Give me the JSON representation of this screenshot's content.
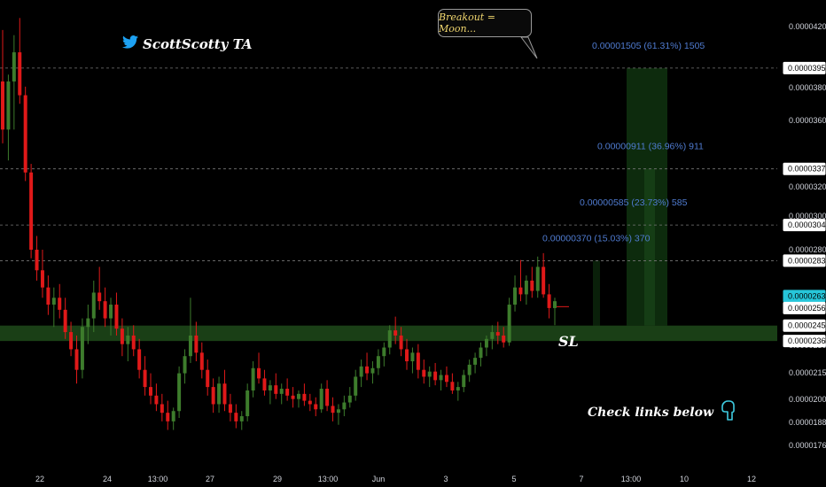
{
  "header": {
    "brand": "ScottScotty TA",
    "brand_icon": "twitter-bird-icon",
    "brand_icon_color": "#1da1f2"
  },
  "annotations": {
    "bubble_text": "Breakout = Moon...",
    "sl_text": "SL",
    "check_text": "Check links below",
    "check_icon": "pointing-down-hand-icon",
    "check_icon_color": "#3ecbe0"
  },
  "colors": {
    "up": "#3d7c2c",
    "down": "#e01919",
    "zone": "#1f4a1a",
    "target_zone": "#123a12",
    "current_price_bg": "#26c6da",
    "target_text": "#4f7bd0",
    "bubble_text": "#f0d66e"
  },
  "chart_data": {
    "type": "candlestick",
    "price_axis_ticks": [
      "0.00004200",
      "0.00003800",
      "0.00003600",
      "0.00003200",
      "0.00003000",
      "0.00002800",
      "0.00002300",
      "0.00002150",
      "0.00002000",
      "0.00001880",
      "0.00001760"
    ],
    "price_tags": [
      {
        "value": "0.00003958",
        "highlight": false
      },
      {
        "value": "0.00003371",
        "highlight": false
      },
      {
        "value": "0.00003044",
        "highlight": false
      },
      {
        "value": "0.00002836",
        "highlight": false
      },
      {
        "value": "0.00002630",
        "highlight": true
      },
      {
        "value": "0.00002560",
        "highlight": false
      },
      {
        "value": "0.00002458",
        "highlight": false
      },
      {
        "value": "0.00002368",
        "highlight": false
      }
    ],
    "date_ticks": [
      "22",
      "24",
      "13:00",
      "27",
      "29",
      "13:00",
      "Jun",
      "3",
      "5",
      "7",
      "13:00",
      "10",
      "12"
    ],
    "targets": [
      {
        "price": 3.958e-05,
        "text": "0.00001505 (61.31%) 1505"
      },
      {
        "price": 3.371e-05,
        "text": "0.00000911 (36.96%) 911"
      },
      {
        "price": 3.044e-05,
        "text": "0.00000585 (23.73%) 585"
      },
      {
        "price": 2.836e-05,
        "text": "0.00000370 (15.03%) 370"
      }
    ],
    "support_zone": {
      "high": 2.458e-05,
      "low": 2.368e-05
    },
    "current_price": 2.63e-05,
    "candles": [
      [
        3.88e-05,
        4.18e-05,
        3.52e-05,
        3.6e-05
      ],
      [
        3.6e-05,
        3.92e-05,
        3.42e-05,
        3.88e-05
      ],
      [
        3.88e-05,
        4.15e-05,
        3.6e-05,
        4.05e-05
      ],
      [
        4.05e-05,
        4.25e-05,
        3.75e-05,
        3.8e-05
      ],
      [
        3.8e-05,
        3.85e-05,
        3.3e-05,
        3.35e-05
      ],
      [
        3.35e-05,
        3.4e-05,
        2.85e-05,
        2.9e-05
      ],
      [
        2.9e-05,
        2.98e-05,
        2.72e-05,
        2.78e-05
      ],
      [
        2.78e-05,
        2.9e-05,
        2.62e-05,
        2.68e-05
      ],
      [
        2.68e-05,
        2.75e-05,
        2.52e-05,
        2.58e-05
      ],
      [
        2.58e-05,
        2.68e-05,
        2.45e-05,
        2.62e-05
      ],
      [
        2.62e-05,
        2.7e-05,
        2.5e-05,
        2.55e-05
      ],
      [
        2.55e-05,
        2.62e-05,
        2.38e-05,
        2.42e-05
      ],
      [
        2.42e-05,
        2.48e-05,
        2.28e-05,
        2.32e-05
      ],
      [
        2.32e-05,
        2.4e-05,
        2.12e-05,
        2.2e-05
      ],
      [
        2.2e-05,
        2.5e-05,
        2.15e-05,
        2.45e-05
      ],
      [
        2.45e-05,
        2.58e-05,
        2.35e-05,
        2.5e-05
      ],
      [
        2.5e-05,
        2.72e-05,
        2.42e-05,
        2.65e-05
      ],
      [
        2.65e-05,
        2.8e-05,
        2.55e-05,
        2.6e-05
      ],
      [
        2.6e-05,
        2.68e-05,
        2.45e-05,
        2.5e-05
      ],
      [
        2.5e-05,
        2.62e-05,
        2.4e-05,
        2.58e-05
      ],
      [
        2.58e-05,
        2.65e-05,
        2.4e-05,
        2.44e-05
      ],
      [
        2.44e-05,
        2.5e-05,
        2.28e-05,
        2.35e-05
      ],
      [
        2.35e-05,
        2.45e-05,
        2.25e-05,
        2.4e-05
      ],
      [
        2.4e-05,
        2.46e-05,
        2.28e-05,
        2.32e-05
      ],
      [
        2.32e-05,
        2.38e-05,
        2.15e-05,
        2.2e-05
      ],
      [
        2.2e-05,
        2.28e-05,
        2.05e-05,
        2.1e-05
      ],
      [
        2.1e-05,
        2.18e-05,
        2e-05,
        2.05e-05
      ],
      [
        2.05e-05,
        2.12e-05,
        1.96e-05,
        2e-05
      ],
      [
        2e-05,
        2.06e-05,
        1.9e-05,
        1.95e-05
      ],
      [
        1.95e-05,
        2.02e-05,
        1.85e-05,
        1.9e-05
      ],
      [
        1.9e-05,
        1.98e-05,
        1.85e-05,
        1.96e-05
      ],
      [
        1.96e-05,
        2.22e-05,
        1.92e-05,
        2.18e-05
      ],
      [
        2.18e-05,
        2.32e-05,
        2.12e-05,
        2.28e-05
      ],
      [
        2.28e-05,
        2.62e-05,
        2.24e-05,
        2.4e-05
      ],
      [
        2.4e-05,
        2.48e-05,
        2.25e-05,
        2.3e-05
      ],
      [
        2.3e-05,
        2.36e-05,
        2.15e-05,
        2.2e-05
      ],
      [
        2.2e-05,
        2.26e-05,
        2.05e-05,
        2.1e-05
      ],
      [
        2.1e-05,
        2.15e-05,
        1.95e-05,
        2e-05
      ],
      [
        2e-05,
        2.16e-05,
        1.95e-05,
        2.12e-05
      ],
      [
        2.12e-05,
        2.2e-05,
        1.96e-05,
        2e-05
      ],
      [
        2e-05,
        2.06e-05,
        1.9e-05,
        1.95e-05
      ],
      [
        1.95e-05,
        2e-05,
        1.86e-05,
        1.9e-05
      ],
      [
        1.9e-05,
        1.96e-05,
        1.85e-05,
        1.93e-05
      ],
      [
        1.93e-05,
        2.12e-05,
        1.9e-05,
        2.08e-05
      ],
      [
        2.08e-05,
        2.25e-05,
        2.04e-05,
        2.21e-05
      ],
      [
        2.21e-05,
        2.3e-05,
        2.12e-05,
        2.15e-05
      ],
      [
        2.15e-05,
        2.2e-05,
        2.05e-05,
        2.08e-05
      ],
      [
        2.08e-05,
        2.14e-05,
        2e-05,
        2.11e-05
      ],
      [
        2.11e-05,
        2.18e-05,
        2.03e-05,
        2.06e-05
      ],
      [
        2.06e-05,
        2.12e-05,
        2e-05,
        2.09e-05
      ],
      [
        2.09e-05,
        2.15e-05,
        2.02e-05,
        2.05e-05
      ],
      [
        2.05e-05,
        2.1e-05,
        1.98e-05,
        2.03e-05
      ],
      [
        2.03e-05,
        2.08e-05,
        1.98e-05,
        2.06e-05
      ],
      [
        2.06e-05,
        2.12e-05,
        1.99e-05,
        2.02e-05
      ],
      [
        2.02e-05,
        2.06e-05,
        1.96e-05,
        2e-05
      ],
      [
        2e-05,
        2.04e-05,
        1.93e-05,
        1.97e-05
      ],
      [
        1.97e-05,
        2.12e-05,
        1.95e-05,
        2.09e-05
      ],
      [
        2.09e-05,
        2.14e-05,
        1.96e-05,
        1.99e-05
      ],
      [
        1.99e-05,
        2.04e-05,
        1.9e-05,
        1.95e-05
      ],
      [
        1.95e-05,
        2e-05,
        1.88e-05,
        1.97e-05
      ],
      [
        1.97e-05,
        2.05e-05,
        1.93e-05,
        2.01e-05
      ],
      [
        2.01e-05,
        2.1e-05,
        1.98e-05,
        2.05e-05
      ],
      [
        2.05e-05,
        2.2e-05,
        2.02e-05,
        2.16e-05
      ],
      [
        2.16e-05,
        2.26e-05,
        2.1e-05,
        2.22e-05
      ],
      [
        2.22e-05,
        2.3e-05,
        2.14e-05,
        2.18e-05
      ],
      [
        2.18e-05,
        2.25e-05,
        2.12e-05,
        2.21e-05
      ],
      [
        2.21e-05,
        2.32e-05,
        2.17e-05,
        2.28e-05
      ],
      [
        2.28e-05,
        2.36e-05,
        2.22e-05,
        2.33e-05
      ],
      [
        2.33e-05,
        2.46e-05,
        2.29e-05,
        2.43e-05
      ],
      [
        2.43e-05,
        2.51e-05,
        2.35e-05,
        2.4e-05
      ],
      [
        2.4e-05,
        2.45e-05,
        2.28e-05,
        2.32e-05
      ],
      [
        2.32e-05,
        2.38e-05,
        2.2e-05,
        2.25e-05
      ],
      [
        2.25e-05,
        2.33e-05,
        2.18e-05,
        2.3e-05
      ],
      [
        2.3e-05,
        2.35e-05,
        2.15e-05,
        2.2e-05
      ],
      [
        2.2e-05,
        2.26e-05,
        2.12e-05,
        2.16e-05
      ],
      [
        2.16e-05,
        2.22e-05,
        2.1e-05,
        2.19e-05
      ],
      [
        2.19e-05,
        2.24e-05,
        2.11e-05,
        2.14e-05
      ],
      [
        2.14e-05,
        2.2e-05,
        2.08e-05,
        2.17e-05
      ],
      [
        2.17e-05,
        2.22e-05,
        2.1e-05,
        2.13e-05
      ],
      [
        2.13e-05,
        2.18e-05,
        2.06e-05,
        2.08e-05
      ],
      [
        2.08e-05,
        2.13e-05,
        2.02e-05,
        2.1e-05
      ],
      [
        2.1e-05,
        2.2e-05,
        2.07e-05,
        2.17e-05
      ],
      [
        2.17e-05,
        2.26e-05,
        2.13e-05,
        2.23e-05
      ],
      [
        2.23e-05,
        2.3e-05,
        2.18e-05,
        2.27e-05
      ],
      [
        2.27e-05,
        2.36e-05,
        2.22e-05,
        2.33e-05
      ],
      [
        2.33e-05,
        2.4e-05,
        2.28e-05,
        2.38e-05
      ],
      [
        2.38e-05,
        2.46e-05,
        2.32e-05,
        2.42e-05
      ],
      [
        2.42e-05,
        2.48e-05,
        2.35e-05,
        2.4e-05
      ],
      [
        2.4e-05,
        2.45e-05,
        2.33e-05,
        2.36e-05
      ],
      [
        2.36e-05,
        2.62e-05,
        2.34e-05,
        2.58e-05
      ],
      [
        2.58e-05,
        2.75e-05,
        2.54e-05,
        2.68e-05
      ],
      [
        2.68e-05,
        2.84e-05,
        2.6e-05,
        2.64e-05
      ],
      [
        2.64e-05,
        2.75e-05,
        2.58e-05,
        2.72e-05
      ],
      [
        2.72e-05,
        2.8e-05,
        2.62e-05,
        2.66e-05
      ],
      [
        2.66e-05,
        2.86e-05,
        2.62e-05,
        2.8e-05
      ],
      [
        2.8e-05,
        2.88e-05,
        2.62e-05,
        2.64e-05
      ],
      [
        2.64e-05,
        2.7e-05,
        2.5e-05,
        2.56e-05
      ],
      [
        2.56e-05,
        2.62e-05,
        2.46e-05,
        2.6e-05
      ]
    ]
  }
}
